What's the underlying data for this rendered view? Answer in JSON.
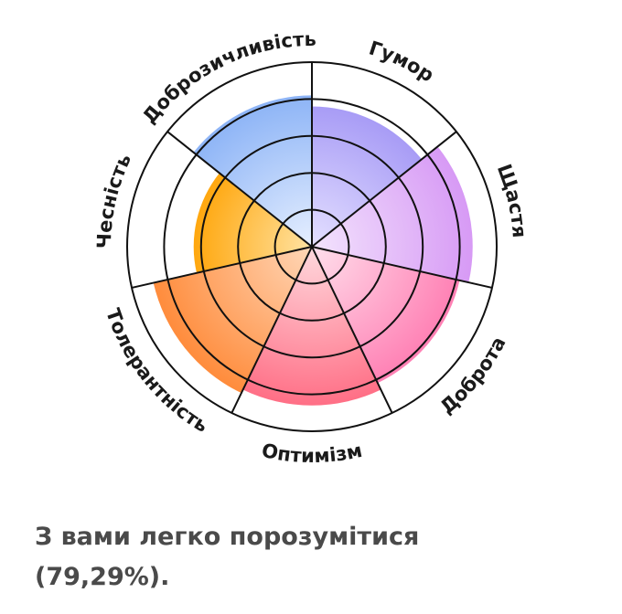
{
  "chart_data": {
    "type": "radial-bar",
    "scale_max": 5,
    "categories": [
      {
        "label": "Гумор",
        "value": 3.8,
        "color_outer": "#a89cf6",
        "color_inner": "#e4e0ff"
      },
      {
        "label": "Щастя",
        "value": 4.35,
        "color_outer": "#d79af5",
        "color_inner": "#f3e4fd"
      },
      {
        "label": "Доброта",
        "value": 4.1,
        "color_outer": "#ff80b4",
        "color_inner": "#ffe0ec"
      },
      {
        "label": "Оптимізм",
        "value": 4.3,
        "color_outer": "#ff6f86",
        "color_inner": "#ffd9de"
      },
      {
        "label": "Толерантність",
        "value": 4.4,
        "color_outer": "#ff8c3c",
        "color_inner": "#ffd7b8"
      },
      {
        "label": "Чесність",
        "value": 3.2,
        "color_outer": "#ffa70e",
        "color_inner": "#ffe3a3"
      },
      {
        "label": "Доброзичливість",
        "value": 4.1,
        "color_outer": "#8db4f6",
        "color_inner": "#e6efff"
      }
    ]
  },
  "caption": {
    "line1": "З вами легко порозумітися",
    "line2": "(79,29%)."
  }
}
